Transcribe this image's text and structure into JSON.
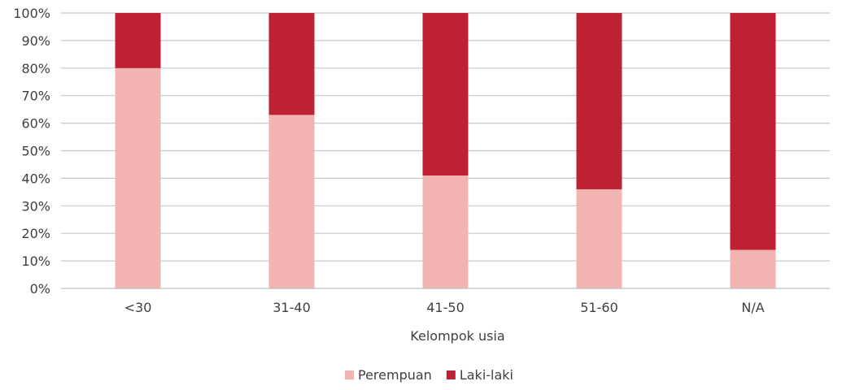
{
  "chart_data": {
    "type": "bar",
    "stacked": true,
    "percent_stacked": true,
    "categories": [
      "<30",
      "31-40",
      "41-50",
      "51-60",
      "N/A"
    ],
    "series": [
      {
        "name": "Perempuan",
        "color": "#f2b3b3",
        "values": [
          80,
          63,
          41,
          36,
          14
        ]
      },
      {
        "name": "Laki-laki",
        "color": "#bd2132",
        "values": [
          20,
          37,
          59,
          64,
          86
        ]
      }
    ],
    "xlabel": "Kelompok usia",
    "ylabel": "",
    "ylim": [
      0,
      100
    ],
    "yticks": [
      "0%",
      "10%",
      "20%",
      "30%",
      "40%",
      "50%",
      "60%",
      "70%",
      "80%",
      "90%",
      "100%"
    ],
    "grid": true,
    "legend_position": "bottom"
  }
}
